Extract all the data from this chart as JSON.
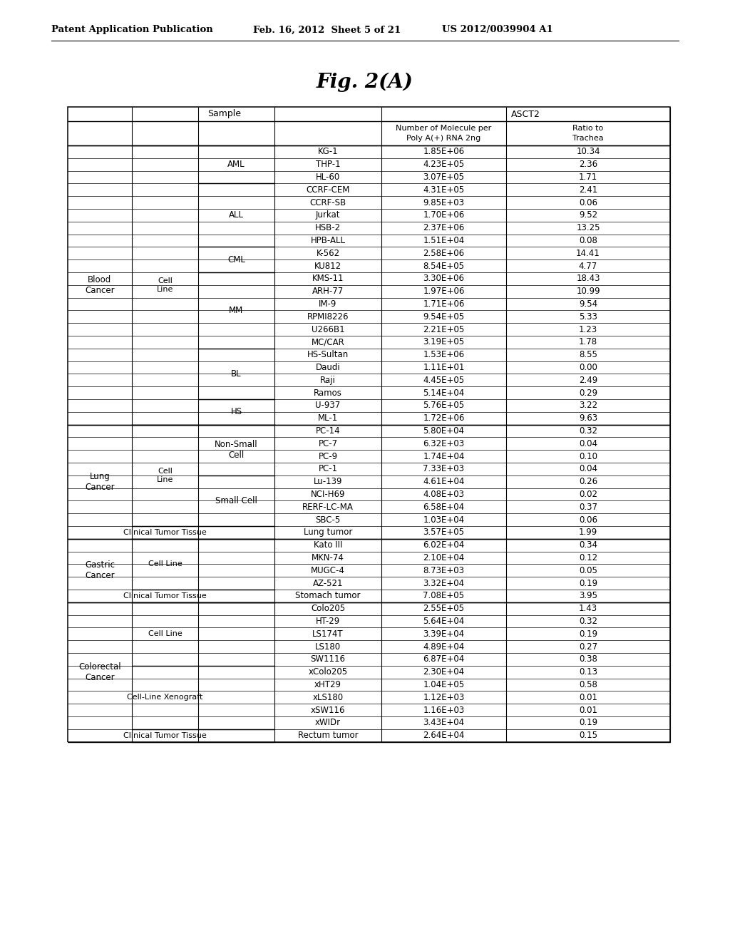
{
  "header_left": "Patent Application Publication",
  "header_mid": "Feb. 16, 2012  Sheet 5 of 21",
  "header_right": "US 2012/0039904 A1",
  "fig_title": "Fig. 2(A)",
  "rows": [
    [
      "Blood\nCancer",
      "Cell\nLine",
      "AML",
      "KG-1",
      "1.85E+06",
      "10.34"
    ],
    [
      "",
      "",
      "",
      "THP-1",
      "4.23E+05",
      "2.36"
    ],
    [
      "",
      "",
      "",
      "HL-60",
      "3.07E+05",
      "1.71"
    ],
    [
      "",
      "",
      "ALL",
      "CCRF-CEM",
      "4.31E+05",
      "2.41"
    ],
    [
      "",
      "",
      "",
      "CCRF-SB",
      "9.85E+03",
      "0.06"
    ],
    [
      "",
      "",
      "",
      "Jurkat",
      "1.70E+06",
      "9.52"
    ],
    [
      "",
      "",
      "",
      "HSB-2",
      "2.37E+06",
      "13.25"
    ],
    [
      "",
      "",
      "",
      "HPB-ALL",
      "1.51E+04",
      "0.08"
    ],
    [
      "",
      "",
      "CML",
      "K-562",
      "2.58E+06",
      "14.41"
    ],
    [
      "",
      "",
      "",
      "KU812",
      "8.54E+05",
      "4.77"
    ],
    [
      "",
      "",
      "MM",
      "KMS-11",
      "3.30E+06",
      "18.43"
    ],
    [
      "",
      "",
      "",
      "ARH-77",
      "1.97E+06",
      "10.99"
    ],
    [
      "",
      "",
      "",
      "IM-9",
      "1.71E+06",
      "9.54"
    ],
    [
      "",
      "",
      "",
      "RPMI8226",
      "9.54E+05",
      "5.33"
    ],
    [
      "",
      "",
      "",
      "U266B1",
      "2.21E+05",
      "1.23"
    ],
    [
      "",
      "",
      "",
      "MC/CAR",
      "3.19E+05",
      "1.78"
    ],
    [
      "",
      "",
      "BL",
      "HS-Sultan",
      "1.53E+06",
      "8.55"
    ],
    [
      "",
      "",
      "",
      "Daudi",
      "1.11E+01",
      "0.00"
    ],
    [
      "",
      "",
      "",
      "Raji",
      "4.45E+05",
      "2.49"
    ],
    [
      "",
      "",
      "",
      "Ramos",
      "5.14E+04",
      "0.29"
    ],
    [
      "",
      "",
      "HS",
      "U-937",
      "5.76E+05",
      "3.22"
    ],
    [
      "",
      "",
      "",
      "ML-1",
      "1.72E+06",
      "9.63"
    ],
    [
      "Lung\nCancer",
      "Cell\nLine",
      "Non-Small\nCell",
      "PC-14",
      "5.80E+04",
      "0.32"
    ],
    [
      "",
      "",
      "",
      "PC-7",
      "6.32E+03",
      "0.04"
    ],
    [
      "",
      "",
      "",
      "PC-9",
      "1.74E+04",
      "0.10"
    ],
    [
      "",
      "",
      "",
      "PC-1",
      "7.33E+03",
      "0.04"
    ],
    [
      "",
      "",
      "Small Cell",
      "Lu-139",
      "4.61E+04",
      "0.26"
    ],
    [
      "",
      "",
      "",
      "NCI-H69",
      "4.08E+03",
      "0.02"
    ],
    [
      "",
      "",
      "",
      "RERF-LC-MA",
      "6.58E+04",
      "0.37"
    ],
    [
      "",
      "",
      "",
      "SBC-5",
      "1.03E+04",
      "0.06"
    ],
    [
      "",
      "Clinical Tumor Tissue",
      "",
      "Lung tumor",
      "3.57E+05",
      "1.99"
    ],
    [
      "Gastric\nCancer",
      "Cell Line",
      "",
      "Kato III",
      "6.02E+04",
      "0.34"
    ],
    [
      "",
      "",
      "",
      "MKN-74",
      "2.10E+04",
      "0.12"
    ],
    [
      "",
      "",
      "",
      "MUGC-4",
      "8.73E+03",
      "0.05"
    ],
    [
      "",
      "",
      "",
      "AZ-521",
      "3.32E+04",
      "0.19"
    ],
    [
      "",
      "Clinical Tumor Tissue",
      "",
      "Stomach tumor",
      "7.08E+05",
      "3.95"
    ],
    [
      "Colorectal\nCancer",
      "Cell Line",
      "",
      "Colo205",
      "2.55E+05",
      "1.43"
    ],
    [
      "",
      "",
      "",
      "HT-29",
      "5.64E+04",
      "0.32"
    ],
    [
      "",
      "",
      "",
      "LS174T",
      "3.39E+04",
      "0.19"
    ],
    [
      "",
      "",
      "",
      "LS180",
      "4.89E+04",
      "0.27"
    ],
    [
      "",
      "",
      "",
      "SW1116",
      "6.87E+04",
      "0.38"
    ],
    [
      "",
      "Cell-Line Xenograft",
      "",
      "xColo205",
      "2.30E+04",
      "0.13"
    ],
    [
      "",
      "",
      "",
      "xHT29",
      "1.04E+05",
      "0.58"
    ],
    [
      "",
      "",
      "",
      "xLS180",
      "1.12E+03",
      "0.01"
    ],
    [
      "",
      "",
      "",
      "xSW116",
      "1.16E+03",
      "0.01"
    ],
    [
      "",
      "",
      "",
      "xWIDr",
      "3.43E+04",
      "0.19"
    ],
    [
      "",
      "Clinical Tumor Tissue",
      "",
      "Rectum tumor",
      "2.64E+04",
      "0.15"
    ]
  ],
  "cancer_groups": [
    [
      "Blood\nCancer",
      0,
      21
    ],
    [
      "Lung\nCancer",
      22,
      30
    ],
    [
      "Gastric\nCancer",
      31,
      35
    ],
    [
      "Colorectal\nCancer",
      36,
      46
    ]
  ],
  "col1_groups": [
    [
      "Cell\nLine",
      0,
      21
    ],
    [
      "Cell\nLine",
      22,
      29
    ],
    [
      "Clinical Tumor Tissue",
      30,
      30
    ],
    [
      "Cell Line",
      31,
      34
    ],
    [
      "Clinical Tumor Tissue",
      35,
      35
    ],
    [
      "Cell Line",
      36,
      40
    ],
    [
      "Cell-Line Xenograft",
      41,
      45
    ],
    [
      "Clinical Tumor Tissue",
      46,
      46
    ]
  ],
  "col2_groups": [
    [
      "AML",
      0,
      2
    ],
    [
      "ALL",
      3,
      7
    ],
    [
      "CML",
      8,
      9
    ],
    [
      "MM",
      10,
      15
    ],
    [
      "BL",
      16,
      19
    ],
    [
      "HS",
      20,
      21
    ],
    [
      "Non-Small\nCell",
      22,
      25
    ],
    [
      "Small Cell",
      26,
      29
    ],
    [
      "",
      30,
      30
    ],
    [
      "",
      31,
      34
    ],
    [
      "",
      35,
      35
    ],
    [
      "",
      36,
      40
    ],
    [
      "",
      41,
      45
    ],
    [
      "",
      46,
      46
    ]
  ]
}
